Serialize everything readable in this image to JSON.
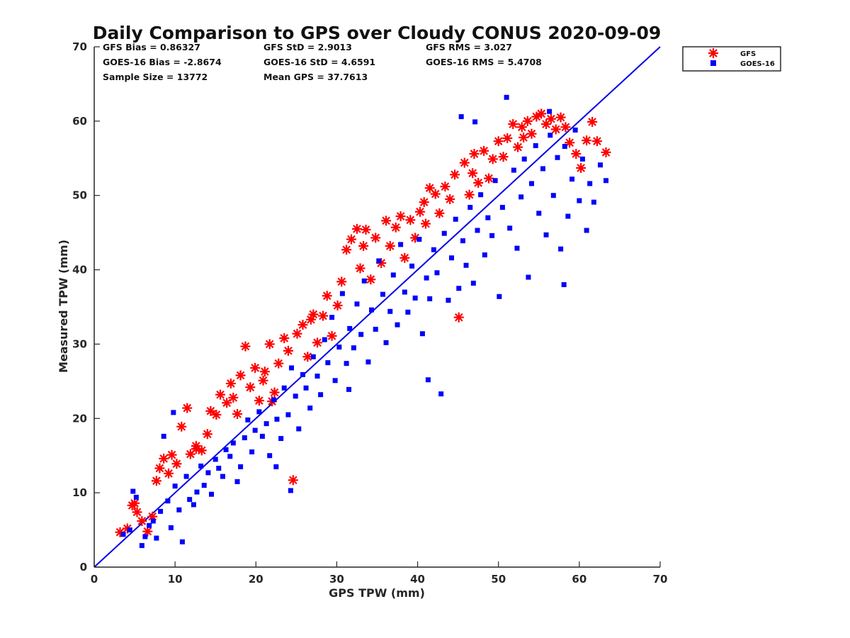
{
  "chart_data": {
    "type": "scatter",
    "title": "Daily Comparison to GPS over Cloudy CONUS 2020-09-09",
    "xlabel": "GPS TPW (mm)",
    "ylabel": "Measured TPW (mm)",
    "xlim": [
      0,
      70
    ],
    "ylim": [
      0,
      70
    ],
    "xticks": [
      "0",
      "10",
      "20",
      "30",
      "40",
      "50",
      "60",
      "70"
    ],
    "yticks": [
      "0",
      "10",
      "20",
      "30",
      "40",
      "50",
      "60",
      "70"
    ],
    "grid": false,
    "legend_position": "outside-top-right",
    "reference_line": {
      "x": [
        0,
        70
      ],
      "y": [
        0,
        70
      ],
      "color": "#0000e6"
    },
    "stats": [
      [
        "GFS Bias = 0.86327",
        "GFS StD = 2.9013",
        "GFS RMS = 3.027"
      ],
      [
        "GOES-16 Bias = -2.8674",
        "GOES-16 StD = 4.6591",
        "GOES-16 RMS = 5.4708"
      ],
      [
        "Sample Size = 13772",
        "Mean GPS = 37.7613",
        ""
      ]
    ],
    "series": [
      {
        "name": "GFS",
        "marker": "asterisk",
        "color": "#ff0000",
        "bias": 0.86327,
        "std": 2.9013,
        "rms": 3.027,
        "points": [
          [
            3.2,
            4.7
          ],
          [
            4.1,
            5.2
          ],
          [
            4.7,
            8.3
          ],
          [
            5.0,
            8.6
          ],
          [
            5.3,
            7.4
          ],
          [
            5.9,
            6.2
          ],
          [
            6.6,
            4.8
          ],
          [
            7.2,
            6.8
          ],
          [
            7.7,
            11.6
          ],
          [
            8.1,
            13.3
          ],
          [
            8.6,
            14.6
          ],
          [
            9.2,
            12.6
          ],
          [
            9.6,
            15.1
          ],
          [
            10.2,
            13.9
          ],
          [
            10.8,
            18.9
          ],
          [
            11.5,
            21.4
          ],
          [
            11.9,
            15.2
          ],
          [
            12.6,
            16.3
          ],
          [
            13.3,
            15.7
          ],
          [
            14.0,
            17.9
          ],
          [
            14.4,
            21.0
          ],
          [
            15.1,
            20.5
          ],
          [
            15.6,
            23.2
          ],
          [
            16.4,
            22.1
          ],
          [
            16.9,
            24.7
          ],
          [
            17.7,
            20.6
          ],
          [
            18.1,
            25.8
          ],
          [
            18.7,
            29.7
          ],
          [
            19.3,
            24.2
          ],
          [
            19.9,
            26.8
          ],
          [
            20.4,
            22.4
          ],
          [
            20.9,
            25.1
          ],
          [
            21.7,
            30.0
          ],
          [
            22.3,
            23.5
          ],
          [
            22.8,
            27.4
          ],
          [
            23.5,
            30.8
          ],
          [
            24.0,
            29.1
          ],
          [
            24.6,
            11.7
          ],
          [
            25.1,
            31.4
          ],
          [
            25.8,
            32.6
          ],
          [
            26.4,
            28.3
          ],
          [
            27.1,
            34.0
          ],
          [
            27.6,
            30.2
          ],
          [
            28.3,
            33.8
          ],
          [
            28.8,
            36.5
          ],
          [
            29.4,
            31.1
          ],
          [
            30.1,
            35.2
          ],
          [
            30.6,
            38.4
          ],
          [
            31.2,
            42.7
          ],
          [
            31.8,
            44.1
          ],
          [
            32.5,
            45.5
          ],
          [
            32.9,
            40.2
          ],
          [
            33.6,
            45.4
          ],
          [
            34.2,
            38.7
          ],
          [
            34.8,
            44.3
          ],
          [
            35.5,
            40.9
          ],
          [
            36.1,
            46.6
          ],
          [
            36.6,
            43.2
          ],
          [
            37.3,
            45.7
          ],
          [
            37.9,
            47.2
          ],
          [
            38.4,
            41.6
          ],
          [
            39.1,
            46.7
          ],
          [
            39.7,
            44.3
          ],
          [
            40.3,
            47.8
          ],
          [
            40.8,
            49.1
          ],
          [
            41.5,
            51.0
          ],
          [
            42.2,
            50.2
          ],
          [
            42.7,
            47.6
          ],
          [
            43.4,
            51.2
          ],
          [
            44.0,
            49.5
          ],
          [
            44.6,
            52.8
          ],
          [
            45.1,
            33.6
          ],
          [
            45.8,
            54.4
          ],
          [
            46.4,
            50.1
          ],
          [
            47.0,
            55.6
          ],
          [
            47.5,
            51.7
          ],
          [
            48.2,
            56.0
          ],
          [
            48.8,
            52.3
          ],
          [
            49.3,
            54.9
          ],
          [
            50.0,
            57.3
          ],
          [
            50.6,
            55.2
          ],
          [
            51.1,
            57.7
          ],
          [
            51.8,
            59.6
          ],
          [
            52.4,
            56.5
          ],
          [
            52.9,
            59.2
          ],
          [
            53.6,
            60.0
          ],
          [
            54.1,
            58.3
          ],
          [
            54.7,
            60.6
          ],
          [
            55.3,
            61.0
          ],
          [
            55.9,
            59.6
          ],
          [
            56.5,
            60.3
          ],
          [
            57.1,
            58.9
          ],
          [
            57.7,
            60.5
          ],
          [
            58.3,
            59.2
          ],
          [
            58.8,
            57.1
          ],
          [
            59.6,
            55.6
          ],
          [
            60.2,
            53.7
          ],
          [
            60.9,
            57.4
          ],
          [
            61.6,
            59.9
          ],
          [
            62.2,
            57.3
          ],
          [
            63.3,
            55.8
          ],
          [
            12.6,
            15.9
          ],
          [
            17.2,
            22.8
          ],
          [
            21.1,
            26.3
          ],
          [
            26.8,
            33.3
          ],
          [
            33.3,
            43.2
          ],
          [
            41.0,
            46.2
          ],
          [
            46.8,
            53.0
          ],
          [
            53.1,
            57.8
          ],
          [
            22.0,
            22.3
          ]
        ]
      },
      {
        "name": "GOES-16",
        "marker": "square",
        "color": "#0000ff",
        "bias": -2.8674,
        "std": 4.6591,
        "rms": 5.4708,
        "points": [
          [
            3.6,
            4.4
          ],
          [
            4.4,
            5.0
          ],
          [
            4.8,
            10.2
          ],
          [
            5.2,
            9.4
          ],
          [
            5.9,
            2.9
          ],
          [
            6.3,
            4.1
          ],
          [
            6.8,
            5.6
          ],
          [
            7.3,
            6.2
          ],
          [
            7.7,
            3.9
          ],
          [
            8.2,
            7.5
          ],
          [
            8.6,
            17.6
          ],
          [
            9.1,
            8.9
          ],
          [
            9.5,
            5.3
          ],
          [
            10.0,
            10.9
          ],
          [
            10.5,
            7.7
          ],
          [
            10.9,
            3.4
          ],
          [
            11.4,
            12.2
          ],
          [
            11.8,
            9.1
          ],
          [
            12.3,
            8.4
          ],
          [
            12.7,
            10.1
          ],
          [
            13.2,
            13.6
          ],
          [
            13.6,
            11.0
          ],
          [
            14.1,
            12.7
          ],
          [
            14.5,
            9.8
          ],
          [
            15.0,
            14.5
          ],
          [
            15.4,
            13.3
          ],
          [
            15.9,
            12.2
          ],
          [
            16.3,
            15.8
          ],
          [
            16.8,
            14.9
          ],
          [
            17.2,
            16.7
          ],
          [
            17.7,
            11.5
          ],
          [
            18.1,
            13.5
          ],
          [
            18.6,
            17.4
          ],
          [
            19.0,
            19.8
          ],
          [
            19.5,
            15.5
          ],
          [
            19.9,
            18.4
          ],
          [
            20.4,
            20.9
          ],
          [
            20.8,
            17.6
          ],
          [
            21.3,
            19.3
          ],
          [
            21.7,
            15.0
          ],
          [
            22.2,
            22.5
          ],
          [
            22.6,
            19.9
          ],
          [
            23.1,
            17.3
          ],
          [
            23.5,
            24.1
          ],
          [
            24.0,
            20.5
          ],
          [
            24.4,
            26.8
          ],
          [
            24.9,
            23.0
          ],
          [
            25.3,
            18.6
          ],
          [
            25.8,
            25.9
          ],
          [
            26.2,
            24.1
          ],
          [
            26.7,
            21.4
          ],
          [
            27.1,
            28.3
          ],
          [
            27.6,
            25.7
          ],
          [
            28.0,
            23.2
          ],
          [
            28.5,
            30.6
          ],
          [
            28.9,
            27.5
          ],
          [
            29.4,
            33.6
          ],
          [
            29.8,
            25.1
          ],
          [
            30.3,
            29.6
          ],
          [
            30.7,
            36.8
          ],
          [
            31.2,
            27.4
          ],
          [
            31.6,
            32.1
          ],
          [
            32.1,
            29.5
          ],
          [
            32.5,
            35.4
          ],
          [
            33.0,
            31.3
          ],
          [
            33.4,
            38.5
          ],
          [
            33.9,
            27.6
          ],
          [
            34.3,
            34.6
          ],
          [
            34.8,
            32.0
          ],
          [
            35.2,
            41.2
          ],
          [
            35.7,
            36.7
          ],
          [
            36.1,
            30.2
          ],
          [
            36.6,
            34.4
          ],
          [
            37.0,
            39.3
          ],
          [
            37.5,
            32.6
          ],
          [
            37.9,
            43.4
          ],
          [
            38.4,
            37.0
          ],
          [
            38.8,
            34.3
          ],
          [
            39.3,
            40.5
          ],
          [
            39.7,
            36.2
          ],
          [
            40.2,
            44.1
          ],
          [
            40.6,
            31.4
          ],
          [
            41.1,
            38.9
          ],
          [
            41.5,
            36.1
          ],
          [
            42.0,
            42.7
          ],
          [
            42.4,
            39.6
          ],
          [
            42.9,
            23.3
          ],
          [
            43.3,
            44.9
          ],
          [
            43.8,
            35.9
          ],
          [
            44.2,
            41.6
          ],
          [
            44.7,
            46.8
          ],
          [
            45.1,
            37.5
          ],
          [
            45.6,
            43.9
          ],
          [
            46.0,
            40.6
          ],
          [
            46.5,
            48.4
          ],
          [
            46.9,
            38.2
          ],
          [
            47.4,
            45.3
          ],
          [
            47.8,
            50.1
          ],
          [
            48.3,
            42.0
          ],
          [
            48.7,
            47.0
          ],
          [
            49.2,
            44.6
          ],
          [
            49.6,
            52.0
          ],
          [
            50.1,
            36.4
          ],
          [
            50.5,
            48.4
          ],
          [
            51.0,
            63.2
          ],
          [
            51.4,
            45.6
          ],
          [
            51.9,
            53.4
          ],
          [
            52.3,
            42.9
          ],
          [
            52.8,
            49.8
          ],
          [
            53.2,
            54.9
          ],
          [
            53.7,
            39.0
          ],
          [
            54.1,
            51.6
          ],
          [
            54.6,
            56.7
          ],
          [
            55.0,
            47.6
          ],
          [
            55.5,
            53.6
          ],
          [
            55.9,
            44.7
          ],
          [
            56.4,
            58.1
          ],
          [
            56.8,
            50.0
          ],
          [
            57.3,
            55.1
          ],
          [
            57.7,
            42.8
          ],
          [
            58.2,
            56.6
          ],
          [
            58.6,
            47.2
          ],
          [
            59.1,
            52.2
          ],
          [
            59.5,
            58.8
          ],
          [
            60.0,
            49.3
          ],
          [
            60.4,
            54.9
          ],
          [
            60.9,
            45.3
          ],
          [
            61.3,
            51.6
          ],
          [
            61.8,
            49.1
          ],
          [
            62.6,
            54.1
          ],
          [
            63.3,
            52.0
          ],
          [
            45.4,
            60.6
          ],
          [
            47.1,
            59.9
          ],
          [
            56.3,
            61.3
          ],
          [
            58.1,
            38.0
          ],
          [
            31.5,
            23.9
          ],
          [
            41.3,
            25.2
          ],
          [
            22.5,
            13.5
          ],
          [
            24.3,
            10.3
          ],
          [
            9.8,
            20.8
          ]
        ]
      }
    ]
  }
}
